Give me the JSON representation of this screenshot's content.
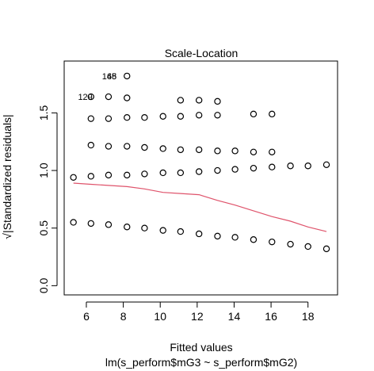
{
  "chart_data": {
    "type": "scatter",
    "title": "Scale-Location",
    "xlabel": "Fitted values",
    "xlabel_sub": "lm(s_perform$mG3 ~ s_perform$mG2)",
    "ylabel": "√|Standardized residuals|",
    "xlim": [
      4.8,
      19.6
    ],
    "ylim": [
      -0.08,
      1.95
    ],
    "xticks": [
      6,
      8,
      10,
      12,
      14,
      16,
      18
    ],
    "yticks": [
      0.0,
      0.5,
      1.0,
      1.5
    ],
    "ytick_labels": [
      "0.0",
      "0.5",
      "1.0",
      "1.5"
    ],
    "points": [
      {
        "x": 5.3,
        "y": 0.94
      },
      {
        "x": 5.3,
        "y": 0.55
      },
      {
        "x": 6.25,
        "y": 1.64
      },
      {
        "x": 6.25,
        "y": 1.45
      },
      {
        "x": 6.25,
        "y": 1.22
      },
      {
        "x": 6.25,
        "y": 0.95
      },
      {
        "x": 6.25,
        "y": 0.54
      },
      {
        "x": 7.2,
        "y": 1.64
      },
      {
        "x": 7.2,
        "y": 1.45
      },
      {
        "x": 7.2,
        "y": 1.21
      },
      {
        "x": 7.2,
        "y": 0.96
      },
      {
        "x": 7.2,
        "y": 0.53
      },
      {
        "x": 8.2,
        "y": 1.82
      },
      {
        "x": 8.2,
        "y": 1.63
      },
      {
        "x": 8.2,
        "y": 1.46
      },
      {
        "x": 8.2,
        "y": 1.21
      },
      {
        "x": 8.2,
        "y": 0.96
      },
      {
        "x": 8.2,
        "y": 0.51
      },
      {
        "x": 9.15,
        "y": 1.46
      },
      {
        "x": 9.15,
        "y": 1.2
      },
      {
        "x": 9.15,
        "y": 0.97
      },
      {
        "x": 9.15,
        "y": 0.5
      },
      {
        "x": 10.15,
        "y": 1.47
      },
      {
        "x": 10.15,
        "y": 1.19
      },
      {
        "x": 10.15,
        "y": 0.98
      },
      {
        "x": 10.15,
        "y": 0.48
      },
      {
        "x": 11.1,
        "y": 1.61
      },
      {
        "x": 11.1,
        "y": 1.47
      },
      {
        "x": 11.1,
        "y": 1.18
      },
      {
        "x": 11.1,
        "y": 0.98
      },
      {
        "x": 11.1,
        "y": 0.47
      },
      {
        "x": 12.1,
        "y": 1.61
      },
      {
        "x": 12.1,
        "y": 1.48
      },
      {
        "x": 12.1,
        "y": 1.18
      },
      {
        "x": 12.1,
        "y": 0.99
      },
      {
        "x": 12.1,
        "y": 0.45
      },
      {
        "x": 13.1,
        "y": 1.6
      },
      {
        "x": 13.1,
        "y": 1.48
      },
      {
        "x": 13.1,
        "y": 1.17
      },
      {
        "x": 13.1,
        "y": 1.0
      },
      {
        "x": 13.1,
        "y": 0.43
      },
      {
        "x": 14.05,
        "y": 1.17
      },
      {
        "x": 14.05,
        "y": 1.01
      },
      {
        "x": 14.05,
        "y": 0.42
      },
      {
        "x": 15.05,
        "y": 1.49
      },
      {
        "x": 15.05,
        "y": 1.16
      },
      {
        "x": 15.05,
        "y": 1.02
      },
      {
        "x": 15.05,
        "y": 0.4
      },
      {
        "x": 16.05,
        "y": 1.49
      },
      {
        "x": 16.05,
        "y": 1.16
      },
      {
        "x": 16.05,
        "y": 1.03
      },
      {
        "x": 16.05,
        "y": 0.38
      },
      {
        "x": 17.05,
        "y": 1.04
      },
      {
        "x": 17.05,
        "y": 0.36
      },
      {
        "x": 18.0,
        "y": 1.04
      },
      {
        "x": 18.0,
        "y": 0.34
      },
      {
        "x": 19.0,
        "y": 1.05
      },
      {
        "x": 19.0,
        "y": 0.32
      }
    ],
    "smooth_line": {
      "color": "#df536b",
      "x": [
        5.3,
        6.25,
        7.2,
        8.2,
        9.15,
        10.15,
        11.1,
        12.1,
        13.1,
        14.05,
        15.05,
        16.05,
        17.05,
        18.0,
        19.0
      ],
      "y": [
        0.89,
        0.88,
        0.87,
        0.86,
        0.84,
        0.81,
        0.8,
        0.79,
        0.74,
        0.7,
        0.65,
        0.6,
        0.56,
        0.51,
        0.47
      ]
    },
    "point_labels": [
      {
        "text": "129",
        "x": 6.25,
        "y": 1.64
      },
      {
        "text": "148",
        "x": 7.55,
        "y": 1.82
      },
      {
        "text": "65",
        "x": 7.55,
        "y": 1.82
      }
    ]
  }
}
